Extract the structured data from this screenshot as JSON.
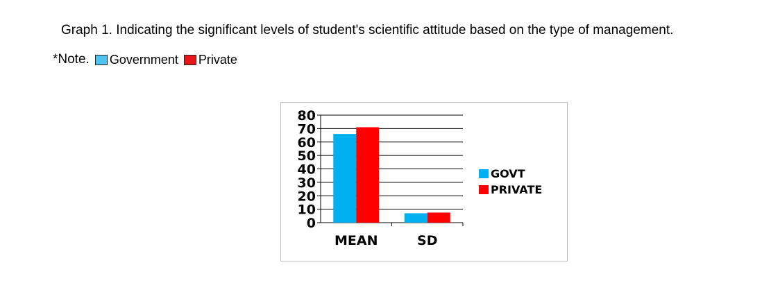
{
  "caption": {
    "label": "Graph 1.",
    "text": "Indicating the significant levels of student's scientific attitude based on the type of management."
  },
  "note": {
    "prefix": "*Note.",
    "items": [
      {
        "label": "Government",
        "color": "#4fc3f0"
      },
      {
        "label": "Private",
        "color": "#e8161b"
      }
    ]
  },
  "chart_data": {
    "type": "bar",
    "categories": [
      "MEAN",
      "SD"
    ],
    "series": [
      {
        "name": "GOVT",
        "color": "#00b0f0",
        "values": [
          66,
          7
        ]
      },
      {
        "name": "PRIVATE",
        "color": "#ff0000",
        "values": [
          71,
          7.5
        ]
      }
    ],
    "ylim": [
      0,
      80
    ],
    "yticks": [
      "0",
      "10",
      "20",
      "30",
      "40",
      "50",
      "60",
      "70",
      "80"
    ],
    "grid": true,
    "legend": "right"
  }
}
